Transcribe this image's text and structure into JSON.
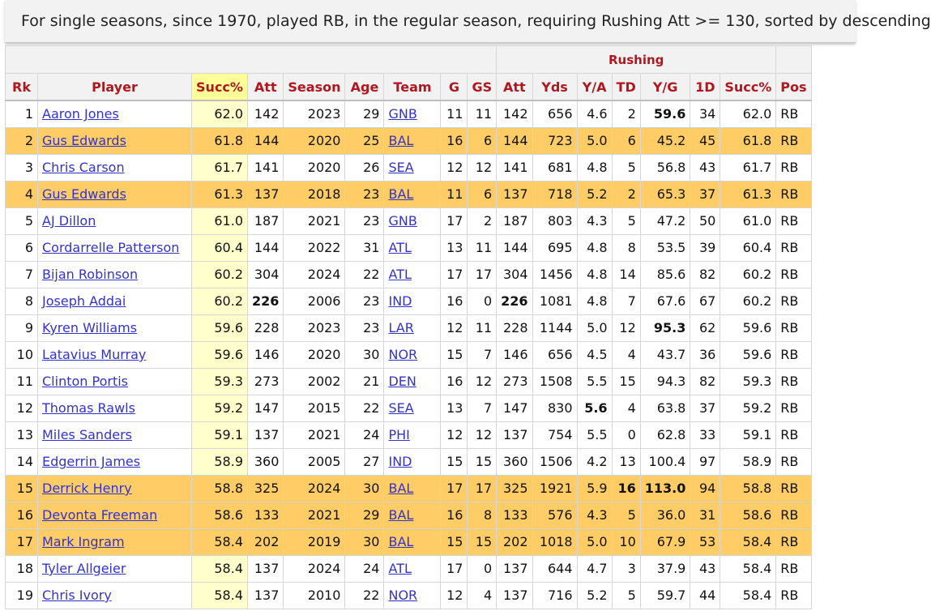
{
  "banner": "For single seasons, since 1970, played RB, in the regular season, requiring Rushing Att >= 130, sorted by descending",
  "group_header": "Rushing",
  "columns": [
    "Rk",
    "Player",
    "Succ%",
    "Att",
    "Season",
    "Age",
    "Team",
    "G",
    "GS",
    "Att",
    "Yds",
    "Y/A",
    "TD",
    "Y/G",
    "1D",
    "Succ%",
    "Pos"
  ],
  "colors": {
    "sorted_header": "#ffff99",
    "sorted_cell": "#ffffcc",
    "highlight_row": "#ffcc66",
    "header_text": "#b0171f",
    "link": "#3333cc"
  },
  "rows": [
    {
      "cells": [
        "1",
        "Aaron Jones",
        "62.0",
        "142",
        "2023",
        "29",
        "GNB",
        "11",
        "11",
        "142",
        "656",
        "4.6",
        "2",
        "59.6",
        "34",
        "62.0",
        "RB"
      ],
      "hl": false,
      "bold": [
        13
      ]
    },
    {
      "cells": [
        "2",
        "Gus Edwards",
        "61.8",
        "144",
        "2020",
        "25",
        "BAL",
        "16",
        "6",
        "144",
        "723",
        "5.0",
        "6",
        "45.2",
        "45",
        "61.8",
        "RB"
      ],
      "hl": true,
      "bold": []
    },
    {
      "cells": [
        "3",
        "Chris Carson",
        "61.7",
        "141",
        "2020",
        "26",
        "SEA",
        "12",
        "12",
        "141",
        "681",
        "4.8",
        "5",
        "56.8",
        "43",
        "61.7",
        "RB"
      ],
      "hl": false,
      "bold": []
    },
    {
      "cells": [
        "4",
        "Gus Edwards",
        "61.3",
        "137",
        "2018",
        "23",
        "BAL",
        "11",
        "6",
        "137",
        "718",
        "5.2",
        "2",
        "65.3",
        "37",
        "61.3",
        "RB"
      ],
      "hl": true,
      "bold": []
    },
    {
      "cells": [
        "5",
        "AJ Dillon",
        "61.0",
        "187",
        "2021",
        "23",
        "GNB",
        "17",
        "2",
        "187",
        "803",
        "4.3",
        "5",
        "47.2",
        "50",
        "61.0",
        "RB"
      ],
      "hl": false,
      "bold": []
    },
    {
      "cells": [
        "6",
        "Cordarrelle Patterson",
        "60.4",
        "144",
        "2022",
        "31",
        "ATL",
        "13",
        "11",
        "144",
        "695",
        "4.8",
        "8",
        "53.5",
        "39",
        "60.4",
        "RB"
      ],
      "hl": false,
      "bold": []
    },
    {
      "cells": [
        "7",
        "Bijan Robinson",
        "60.2",
        "304",
        "2024",
        "22",
        "ATL",
        "17",
        "17",
        "304",
        "1456",
        "4.8",
        "14",
        "85.6",
        "82",
        "60.2",
        "RB"
      ],
      "hl": false,
      "bold": []
    },
    {
      "cells": [
        "8",
        "Joseph Addai",
        "60.2",
        "226",
        "2006",
        "23",
        "IND",
        "16",
        "0",
        "226",
        "1081",
        "4.8",
        "7",
        "67.6",
        "67",
        "60.2",
        "RB"
      ],
      "hl": false,
      "bold": [
        3,
        9
      ]
    },
    {
      "cells": [
        "9",
        "Kyren Williams",
        "59.6",
        "228",
        "2023",
        "23",
        "LAR",
        "12",
        "11",
        "228",
        "1144",
        "5.0",
        "12",
        "95.3",
        "62",
        "59.6",
        "RB"
      ],
      "hl": false,
      "bold": [
        13
      ]
    },
    {
      "cells": [
        "10",
        "Latavius Murray",
        "59.6",
        "146",
        "2020",
        "30",
        "NOR",
        "15",
        "7",
        "146",
        "656",
        "4.5",
        "4",
        "43.7",
        "36",
        "59.6",
        "RB"
      ],
      "hl": false,
      "bold": []
    },
    {
      "cells": [
        "11",
        "Clinton Portis",
        "59.3",
        "273",
        "2002",
        "21",
        "DEN",
        "16",
        "12",
        "273",
        "1508",
        "5.5",
        "15",
        "94.3",
        "82",
        "59.3",
        "RB"
      ],
      "hl": false,
      "bold": []
    },
    {
      "cells": [
        "12",
        "Thomas Rawls",
        "59.2",
        "147",
        "2015",
        "22",
        "SEA",
        "13",
        "7",
        "147",
        "830",
        "5.6",
        "4",
        "63.8",
        "37",
        "59.2",
        "RB"
      ],
      "hl": false,
      "bold": [
        11
      ]
    },
    {
      "cells": [
        "13",
        "Miles Sanders",
        "59.1",
        "137",
        "2021",
        "24",
        "PHI",
        "12",
        "12",
        "137",
        "754",
        "5.5",
        "0",
        "62.8",
        "33",
        "59.1",
        "RB"
      ],
      "hl": false,
      "bold": []
    },
    {
      "cells": [
        "14",
        "Edgerrin James",
        "58.9",
        "360",
        "2005",
        "27",
        "IND",
        "15",
        "15",
        "360",
        "1506",
        "4.2",
        "13",
        "100.4",
        "97",
        "58.9",
        "RB"
      ],
      "hl": false,
      "bold": []
    },
    {
      "cells": [
        "15",
        "Derrick Henry",
        "58.8",
        "325",
        "2024",
        "30",
        "BAL",
        "17",
        "17",
        "325",
        "1921",
        "5.9",
        "16",
        "113.0",
        "94",
        "58.8",
        "RB"
      ],
      "hl": true,
      "bold": [
        12,
        13
      ]
    },
    {
      "cells": [
        "16",
        "Devonta Freeman",
        "58.6",
        "133",
        "2021",
        "29",
        "BAL",
        "16",
        "8",
        "133",
        "576",
        "4.3",
        "5",
        "36.0",
        "31",
        "58.6",
        "RB"
      ],
      "hl": true,
      "bold": []
    },
    {
      "cells": [
        "17",
        "Mark Ingram",
        "58.4",
        "202",
        "2019",
        "30",
        "BAL",
        "15",
        "15",
        "202",
        "1018",
        "5.0",
        "10",
        "67.9",
        "53",
        "58.4",
        "RB"
      ],
      "hl": true,
      "bold": []
    },
    {
      "cells": [
        "18",
        "Tyler Allgeier",
        "58.4",
        "137",
        "2024",
        "24",
        "ATL",
        "17",
        "0",
        "137",
        "644",
        "4.7",
        "3",
        "37.9",
        "43",
        "58.4",
        "RB"
      ],
      "hl": false,
      "bold": []
    },
    {
      "cells": [
        "19",
        "Chris Ivory",
        "58.4",
        "137",
        "2010",
        "22",
        "NOR",
        "12",
        "4",
        "137",
        "716",
        "5.2",
        "5",
        "59.7",
        "44",
        "58.4",
        "RB"
      ],
      "hl": false,
      "bold": []
    }
  ]
}
